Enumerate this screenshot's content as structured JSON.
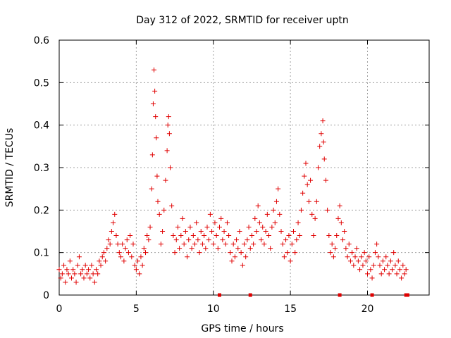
{
  "chart_data": {
    "type": "scatter",
    "title": "Day 312 of 2022, SRMTID for receiver uptn",
    "xlabel": "GPS time / hours",
    "ylabel": "SRMTID / TECUs",
    "xlim": [
      0,
      24
    ],
    "ylim": [
      0,
      0.6
    ],
    "grid": true,
    "x_ticks": [
      0,
      5,
      10,
      15,
      20
    ],
    "x_tick_labels": [
      "0",
      "5",
      "10",
      "15",
      "20"
    ],
    "y_ticks": [
      0,
      0.1,
      0.2,
      0.3,
      0.4,
      0.5,
      0.6
    ],
    "y_tick_labels": [
      "0",
      "0.1",
      "0.2",
      "0.3",
      "0.4",
      "0.5",
      "0.6"
    ],
    "series": [
      {
        "name": "SRMTID",
        "color": "#e00000",
        "marker": "plus",
        "points": [
          [
            0.0,
            0.06
          ],
          [
            0.1,
            0.04
          ],
          [
            0.2,
            0.05
          ],
          [
            0.3,
            0.07
          ],
          [
            0.4,
            0.03
          ],
          [
            0.5,
            0.06
          ],
          [
            0.6,
            0.05
          ],
          [
            0.7,
            0.08
          ],
          [
            0.8,
            0.04
          ],
          [
            0.9,
            0.06
          ],
          [
            1.0,
            0.05
          ],
          [
            1.1,
            0.03
          ],
          [
            1.2,
            0.07
          ],
          [
            1.3,
            0.09
          ],
          [
            1.4,
            0.05
          ],
          [
            1.5,
            0.06
          ],
          [
            1.6,
            0.04
          ],
          [
            1.7,
            0.07
          ],
          [
            1.8,
            0.05
          ],
          [
            1.9,
            0.06
          ],
          [
            2.0,
            0.04
          ],
          [
            2.1,
            0.07
          ],
          [
            2.2,
            0.05
          ],
          [
            2.3,
            0.03
          ],
          [
            2.4,
            0.06
          ],
          [
            2.5,
            0.05
          ],
          [
            2.6,
            0.08
          ],
          [
            2.7,
            0.07
          ],
          [
            2.8,
            0.09
          ],
          [
            2.9,
            0.1
          ],
          [
            3.0,
            0.08
          ],
          [
            3.1,
            0.11
          ],
          [
            3.2,
            0.13
          ],
          [
            3.3,
            0.12
          ],
          [
            3.4,
            0.15
          ],
          [
            3.5,
            0.17
          ],
          [
            3.6,
            0.19
          ],
          [
            3.7,
            0.14
          ],
          [
            3.8,
            0.12
          ],
          [
            3.9,
            0.1
          ],
          [
            4.0,
            0.09
          ],
          [
            4.1,
            0.12
          ],
          [
            4.2,
            0.08
          ],
          [
            4.3,
            0.11
          ],
          [
            4.4,
            0.13
          ],
          [
            4.5,
            0.1
          ],
          [
            4.6,
            0.14
          ],
          [
            4.7,
            0.09
          ],
          [
            4.8,
            0.12
          ],
          [
            4.9,
            0.07
          ],
          [
            5.0,
            0.06
          ],
          [
            5.1,
            0.08
          ],
          [
            5.2,
            0.05
          ],
          [
            5.3,
            0.09
          ],
          [
            5.4,
            0.07
          ],
          [
            5.5,
            0.11
          ],
          [
            5.6,
            0.1
          ],
          [
            5.7,
            0.14
          ],
          [
            5.8,
            0.13
          ],
          [
            5.9,
            0.16
          ],
          [
            6.0,
            0.25
          ],
          [
            6.05,
            0.33
          ],
          [
            6.1,
            0.45
          ],
          [
            6.15,
            0.53
          ],
          [
            6.2,
            0.48
          ],
          [
            6.25,
            0.42
          ],
          [
            6.3,
            0.37
          ],
          [
            6.35,
            0.28
          ],
          [
            6.4,
            0.22
          ],
          [
            6.5,
            0.19
          ],
          [
            6.6,
            0.12
          ],
          [
            6.7,
            0.15
          ],
          [
            6.8,
            0.2
          ],
          [
            6.9,
            0.27
          ],
          [
            7.0,
            0.34
          ],
          [
            7.05,
            0.4
          ],
          [
            7.1,
            0.42
          ],
          [
            7.15,
            0.38
          ],
          [
            7.2,
            0.3
          ],
          [
            7.3,
            0.21
          ],
          [
            7.4,
            0.14
          ],
          [
            7.5,
            0.1
          ],
          [
            7.6,
            0.13
          ],
          [
            7.7,
            0.16
          ],
          [
            7.8,
            0.11
          ],
          [
            7.9,
            0.14
          ],
          [
            8.0,
            0.18
          ],
          [
            8.1,
            0.12
          ],
          [
            8.2,
            0.15
          ],
          [
            8.3,
            0.09
          ],
          [
            8.4,
            0.13
          ],
          [
            8.5,
            0.16
          ],
          [
            8.6,
            0.11
          ],
          [
            8.7,
            0.14
          ],
          [
            8.8,
            0.12
          ],
          [
            8.9,
            0.17
          ],
          [
            9.0,
            0.13
          ],
          [
            9.1,
            0.1
          ],
          [
            9.2,
            0.15
          ],
          [
            9.3,
            0.12
          ],
          [
            9.4,
            0.14
          ],
          [
            9.5,
            0.11
          ],
          [
            9.6,
            0.16
          ],
          [
            9.7,
            0.13
          ],
          [
            9.8,
            0.19
          ],
          [
            9.9,
            0.15
          ],
          [
            10.0,
            0.12
          ],
          [
            10.1,
            0.17
          ],
          [
            10.2,
            0.14
          ],
          [
            10.3,
            0.11
          ],
          [
            10.4,
            0.16
          ],
          [
            10.5,
            0.18
          ],
          [
            10.6,
            0.13
          ],
          [
            10.7,
            0.15
          ],
          [
            10.8,
            0.12
          ],
          [
            10.9,
            0.17
          ],
          [
            11.0,
            0.14
          ],
          [
            11.1,
            0.1
          ],
          [
            11.2,
            0.08
          ],
          [
            11.3,
            0.12
          ],
          [
            11.4,
            0.09
          ],
          [
            11.5,
            0.13
          ],
          [
            11.6,
            0.11
          ],
          [
            11.7,
            0.15
          ],
          [
            11.8,
            0.1
          ],
          [
            11.9,
            0.07
          ],
          [
            12.0,
            0.12
          ],
          [
            12.1,
            0.09
          ],
          [
            12.2,
            0.13
          ],
          [
            12.3,
            0.16
          ],
          [
            12.4,
            0.11
          ],
          [
            12.5,
            0.14
          ],
          [
            12.6,
            0.12
          ],
          [
            12.7,
            0.18
          ],
          [
            12.8,
            0.15
          ],
          [
            12.9,
            0.21
          ],
          [
            13.0,
            0.17
          ],
          [
            13.1,
            0.13
          ],
          [
            13.2,
            0.16
          ],
          [
            13.3,
            0.12
          ],
          [
            13.4,
            0.15
          ],
          [
            13.5,
            0.19
          ],
          [
            13.6,
            0.14
          ],
          [
            13.7,
            0.11
          ],
          [
            13.8,
            0.16
          ],
          [
            13.9,
            0.2
          ],
          [
            14.0,
            0.17
          ],
          [
            14.1,
            0.22
          ],
          [
            14.2,
            0.25
          ],
          [
            14.3,
            0.19
          ],
          [
            14.4,
            0.15
          ],
          [
            14.5,
            0.12
          ],
          [
            14.6,
            0.09
          ],
          [
            14.7,
            0.13
          ],
          [
            14.8,
            0.1
          ],
          [
            14.9,
            0.14
          ],
          [
            15.0,
            0.08
          ],
          [
            15.1,
            0.12
          ],
          [
            15.2,
            0.15
          ],
          [
            15.3,
            0.1
          ],
          [
            15.4,
            0.13
          ],
          [
            15.5,
            0.17
          ],
          [
            15.6,
            0.14
          ],
          [
            15.7,
            0.2
          ],
          [
            15.8,
            0.24
          ],
          [
            15.9,
            0.28
          ],
          [
            16.0,
            0.31
          ],
          [
            16.1,
            0.26
          ],
          [
            16.2,
            0.22
          ],
          [
            16.3,
            0.27
          ],
          [
            16.4,
            0.19
          ],
          [
            16.5,
            0.14
          ],
          [
            16.6,
            0.18
          ],
          [
            16.7,
            0.22
          ],
          [
            16.8,
            0.3
          ],
          [
            16.9,
            0.35
          ],
          [
            17.0,
            0.38
          ],
          [
            17.1,
            0.41
          ],
          [
            17.15,
            0.36
          ],
          [
            17.2,
            0.32
          ],
          [
            17.3,
            0.27
          ],
          [
            17.4,
            0.2
          ],
          [
            17.5,
            0.14
          ],
          [
            17.6,
            0.1
          ],
          [
            17.7,
            0.12
          ],
          [
            17.8,
            0.09
          ],
          [
            17.9,
            0.11
          ],
          [
            18.0,
            0.14
          ],
          [
            18.1,
            0.18
          ],
          [
            18.2,
            0.21
          ],
          [
            18.3,
            0.17
          ],
          [
            18.4,
            0.13
          ],
          [
            18.5,
            0.15
          ],
          [
            18.6,
            0.11
          ],
          [
            18.7,
            0.09
          ],
          [
            18.8,
            0.12
          ],
          [
            18.9,
            0.08
          ],
          [
            19.0,
            0.1
          ],
          [
            19.1,
            0.07
          ],
          [
            19.2,
            0.09
          ],
          [
            19.3,
            0.11
          ],
          [
            19.4,
            0.08
          ],
          [
            19.5,
            0.06
          ],
          [
            19.6,
            0.09
          ],
          [
            19.7,
            0.07
          ],
          [
            19.8,
            0.1
          ],
          [
            19.9,
            0.08
          ],
          [
            20.0,
            0.05
          ],
          [
            20.1,
            0.09
          ],
          [
            20.2,
            0.06
          ],
          [
            20.3,
            0.04
          ],
          [
            20.4,
            0.07
          ],
          [
            20.5,
            0.1
          ],
          [
            20.6,
            0.12
          ],
          [
            20.7,
            0.09
          ],
          [
            20.8,
            0.07
          ],
          [
            20.9,
            0.05
          ],
          [
            21.0,
            0.08
          ],
          [
            21.1,
            0.06
          ],
          [
            21.2,
            0.09
          ],
          [
            21.3,
            0.07
          ],
          [
            21.4,
            0.05
          ],
          [
            21.5,
            0.08
          ],
          [
            21.6,
            0.06
          ],
          [
            21.7,
            0.1
          ],
          [
            21.8,
            0.07
          ],
          [
            21.9,
            0.05
          ],
          [
            22.0,
            0.08
          ],
          [
            22.1,
            0.06
          ],
          [
            22.2,
            0.04
          ],
          [
            22.3,
            0.07
          ],
          [
            22.4,
            0.05
          ],
          [
            22.5,
            0.06
          ]
        ]
      }
    ],
    "baseline_markers": [
      10.4,
      12.4,
      18.2,
      20.3,
      22.5,
      22.6
    ]
  }
}
